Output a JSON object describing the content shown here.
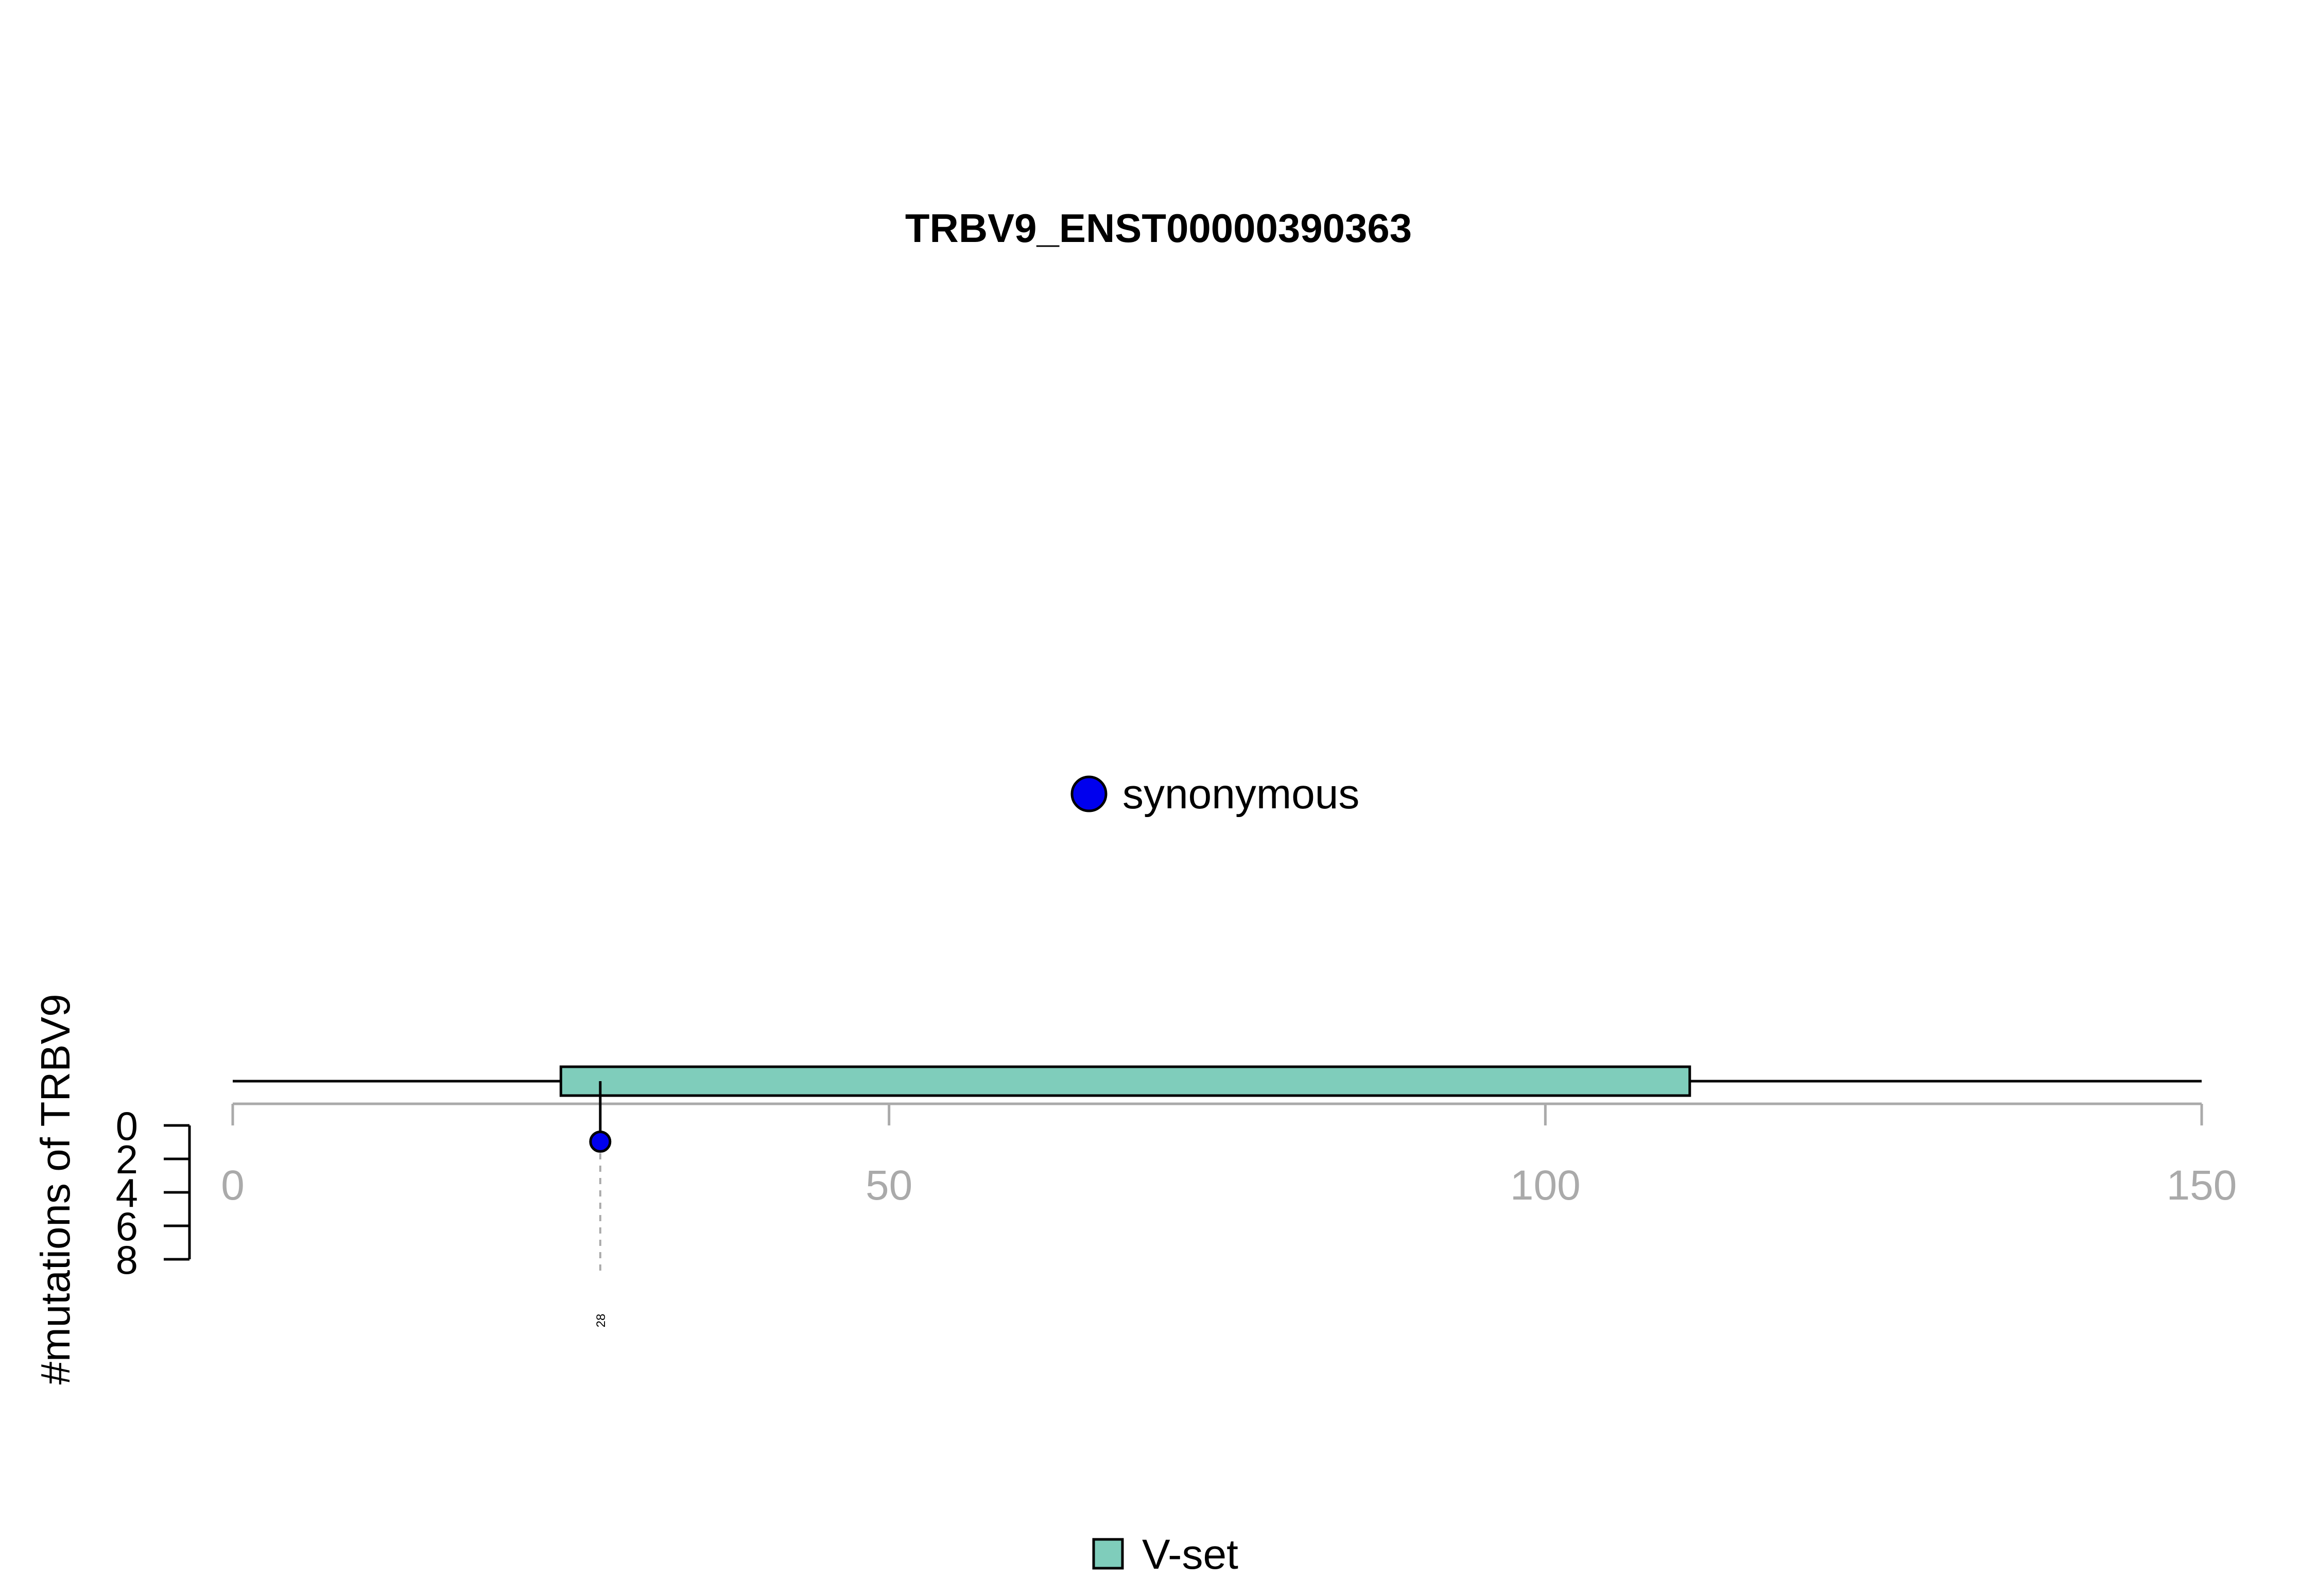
{
  "chart_data": {
    "type": "lollipop",
    "title": "TRBV9_ENST00000390363",
    "ylabel": "#mutations of TRBV9",
    "xlim": [
      0,
      150
    ],
    "ylim": [
      0,
      8
    ],
    "x_ticks": [
      "0",
      "50",
      "100",
      "150"
    ],
    "y_ticks": [
      "0",
      "2",
      "4",
      "6",
      "8"
    ],
    "mutation_legend": [
      {
        "label": "synonymous",
        "color": "#0000ee"
      }
    ],
    "domain_legend": [
      {
        "label": "V-set",
        "color": "#7fcdbb"
      }
    ],
    "domains": [
      {
        "name": "V-set",
        "start": 25,
        "end": 111,
        "color": "#7fcdbb"
      }
    ],
    "mutations": [
      {
        "position": 28,
        "label": "28",
        "count": 1,
        "type": "synonymous",
        "color": "#0000ee"
      }
    ],
    "axis_color": "#aaaaaa",
    "grid": false
  }
}
